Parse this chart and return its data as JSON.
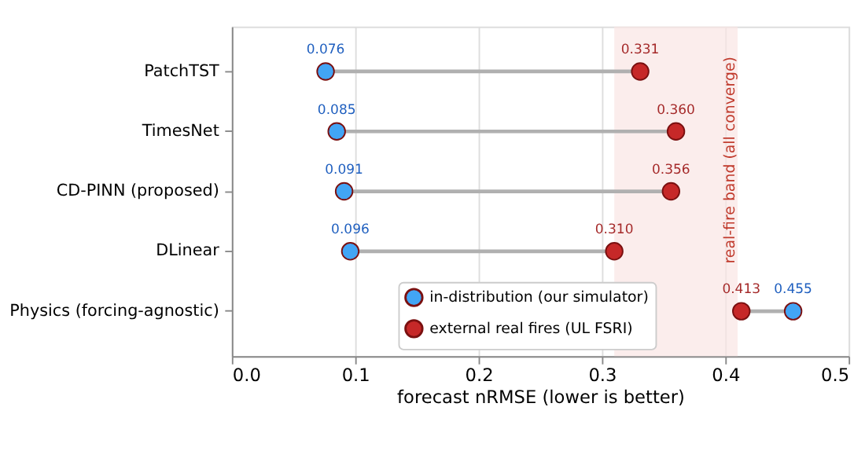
{
  "chart_data": {
    "type": "scatter",
    "orientation": "horizontal",
    "xlabel": "forecast nRMSE (lower is better)",
    "categories": [
      "PatchTST",
      "TimesNet",
      "CD-PINN (proposed)",
      "DLinear",
      "Physics (forcing-agnostic)"
    ],
    "series": [
      {
        "name": "in-distribution (our simulator)",
        "color": "#42a5f5",
        "values": [
          0.076,
          0.085,
          0.091,
          0.096,
          0.455
        ],
        "value_labels": [
          "0.076",
          "0.085",
          "0.091",
          "0.096",
          "0.455"
        ]
      },
      {
        "name": "external real fires (UL FSRI)",
        "color": "#c62828",
        "values": [
          0.331,
          0.36,
          0.356,
          0.31,
          0.413
        ],
        "value_labels": [
          "0.331",
          "0.360",
          "0.356",
          "0.310",
          "0.413"
        ]
      }
    ],
    "xlim": [
      0.0,
      0.5
    ],
    "xticks": [
      {
        "value": 0.0,
        "label": "0.0"
      },
      0.1,
      0.2,
      0.3,
      0.4,
      0.5
    ],
    "bands": [
      {
        "axis": "x",
        "from": 0.31,
        "to": 0.41,
        "label": "real-fire band (all converge)",
        "color": "#f9e6e4"
      }
    ],
    "grid": "x",
    "legend": "bottom",
    "marker": "circle"
  }
}
